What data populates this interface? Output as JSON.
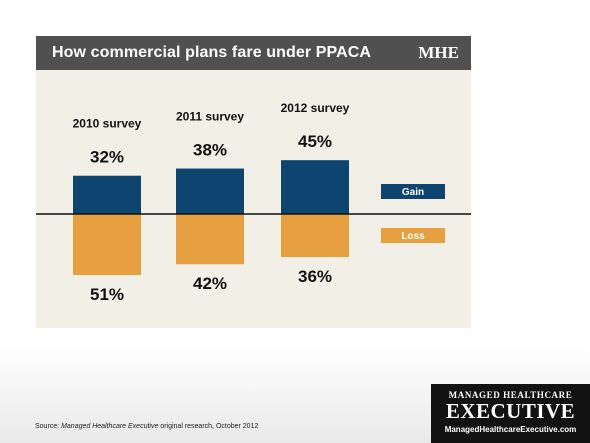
{
  "header": {
    "title": "How commercial plans fare under PPACA",
    "logo": "MHE"
  },
  "chart_data": {
    "type": "bar",
    "title": "How commercial plans fare under PPACA",
    "categories": [
      "2010 survey",
      "2011 survey",
      "2012 survey"
    ],
    "series": [
      {
        "name": "Gain",
        "values": [
          32,
          38,
          45
        ],
        "color": "#0e4570"
      },
      {
        "name": "Loss",
        "values": [
          51,
          42,
          36
        ],
        "color": "#e6a040"
      }
    ],
    "unit": "%",
    "legend": "right",
    "grid": false
  },
  "footer": {
    "source_prefix": "Source: ",
    "source_italic": "Managed Healthcare Executive",
    "source_suffix": " original research, October 2012",
    "brand_top": "MANAGED HEALTHCARE",
    "brand_main": "EXECUTIVE",
    "brand_url": "ManagedHealthcareExecutive.com"
  }
}
